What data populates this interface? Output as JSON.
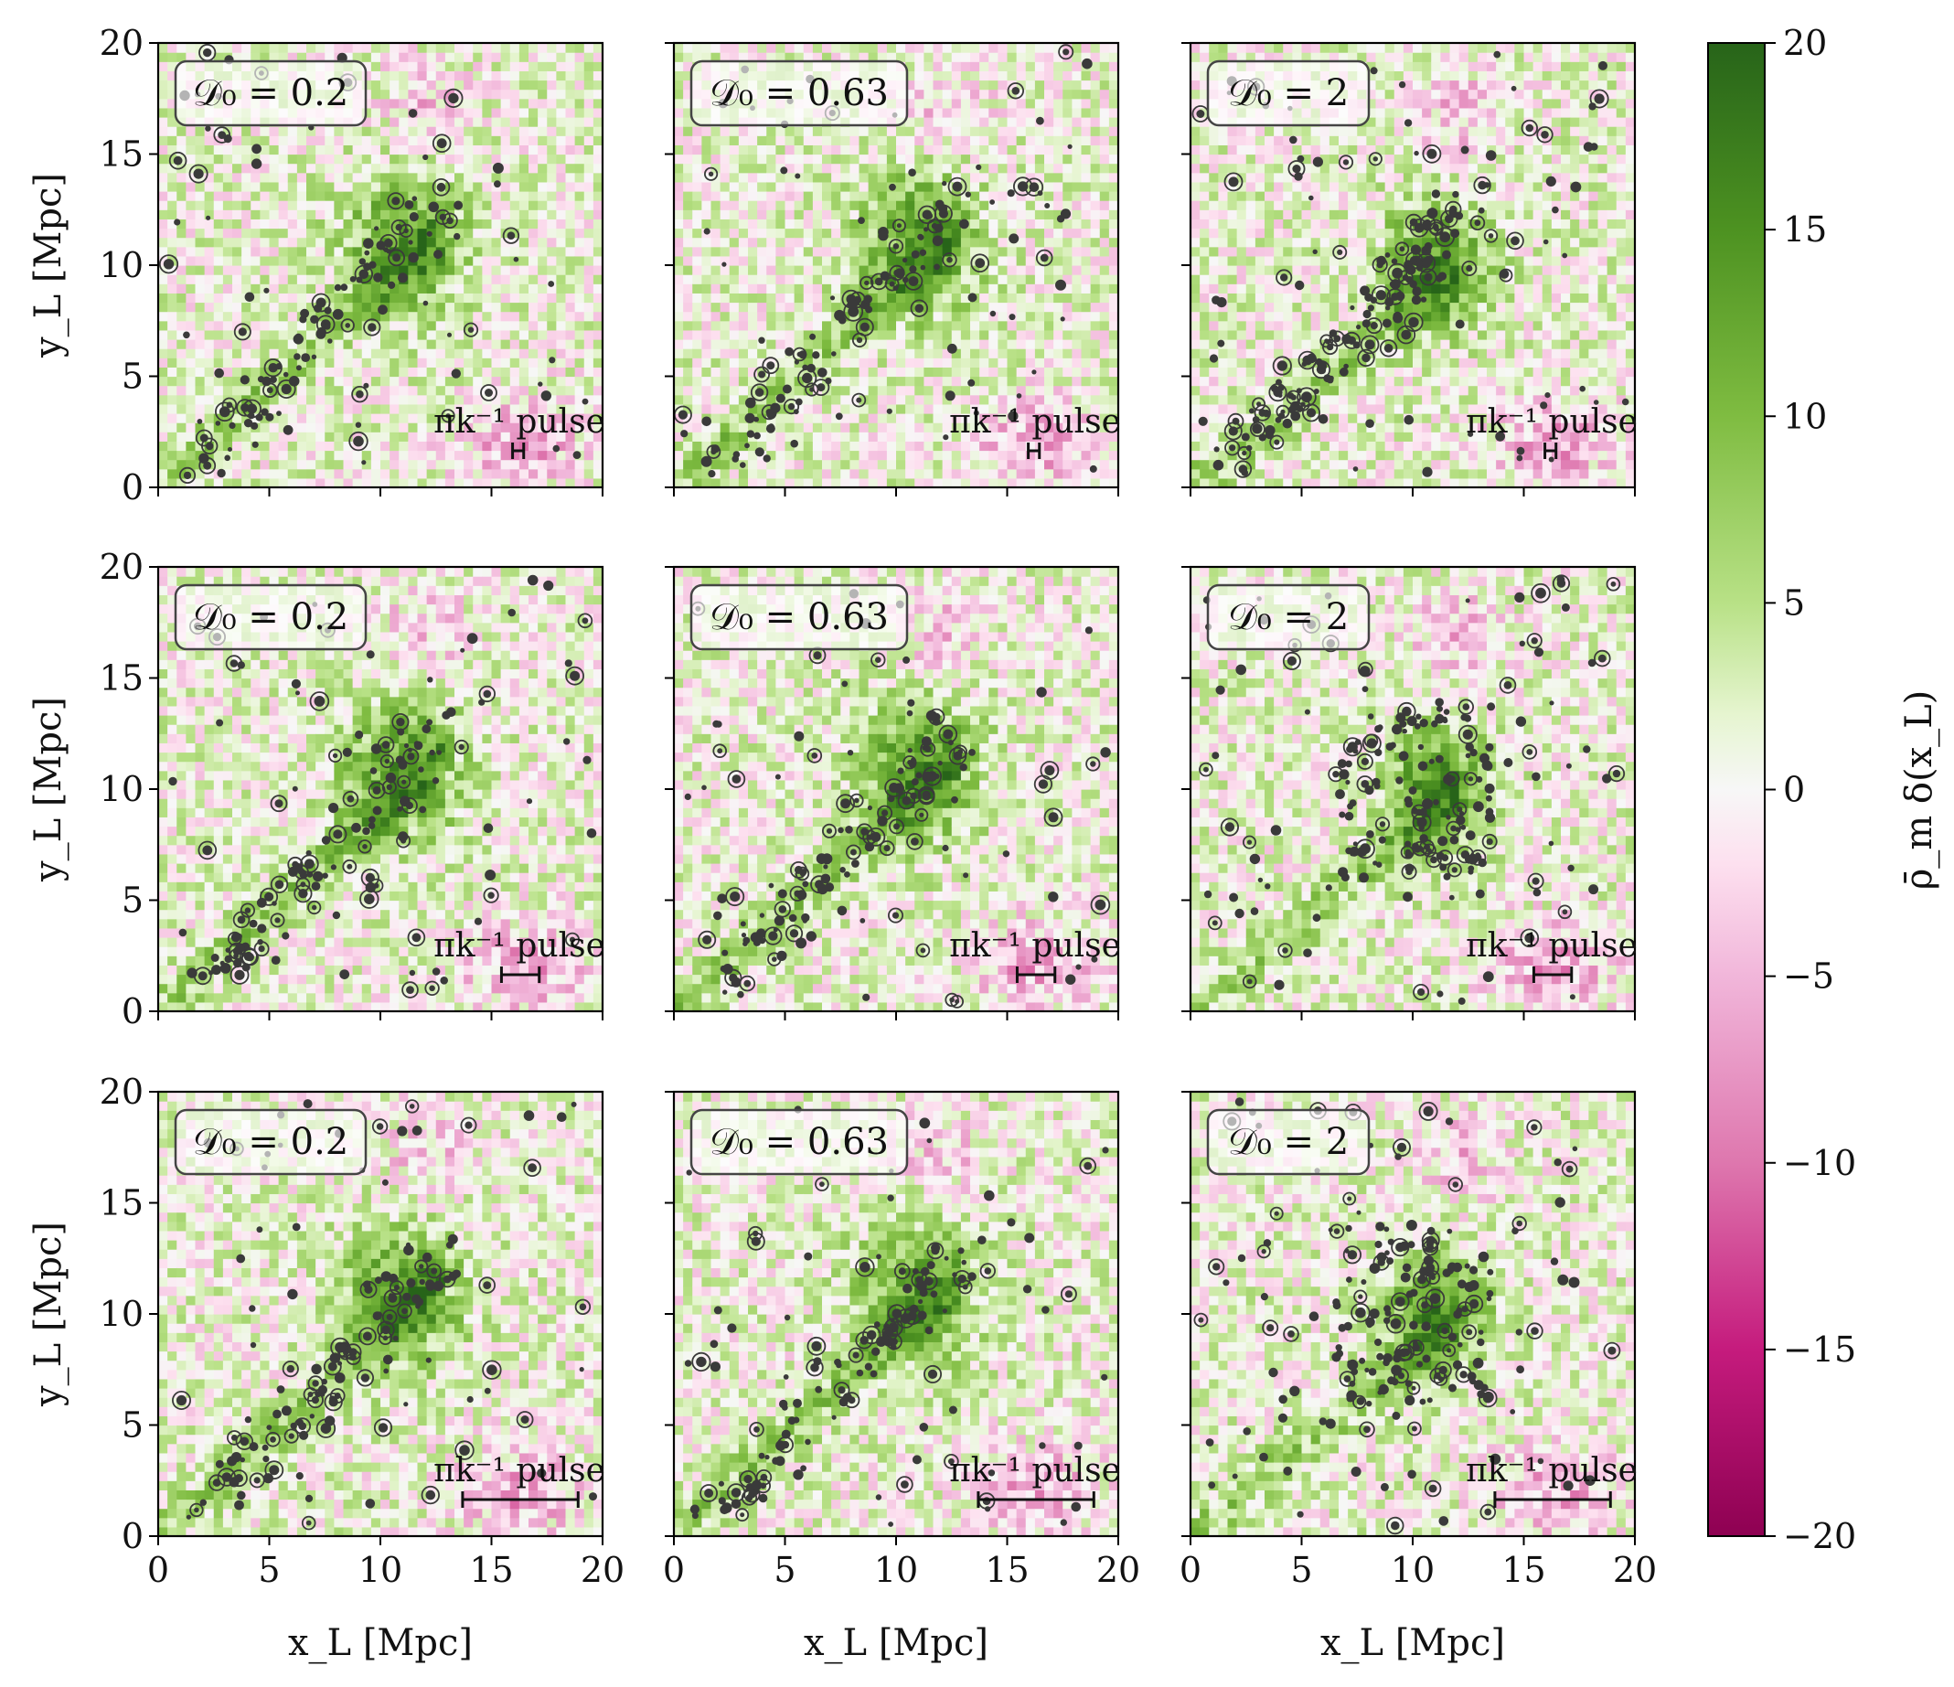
{
  "chart_data": {
    "type": "heatmap",
    "rows": 3,
    "cols": 3,
    "panel_labels": [
      "𝒟₀ = 0.2",
      "𝒟₀ = 0.63",
      "𝒟₀ = 2"
    ],
    "xlabel": "x_L [Mpc]",
    "ylabel": "y_L [Mpc]",
    "x_range": [
      0,
      20
    ],
    "y_range": [
      0,
      20
    ],
    "x_ticks": [
      "0",
      "5",
      "10",
      "15",
      "20"
    ],
    "y_ticks": [
      "0",
      "5",
      "10",
      "15",
      "20"
    ],
    "colorbar": {
      "label": "ρ̄_m δ(x_L)",
      "range": [
        -20,
        20
      ],
      "ticks": [
        "−20",
        "−15",
        "−10",
        "−5",
        "0",
        "5",
        "10",
        "15",
        "20"
      ],
      "colormap": "PiYG"
    },
    "scale_bar_label": "πk⁻¹ pulse",
    "scale_bar_lengths_mpc": [
      0.5,
      1.7,
      5.2
    ],
    "scale_bar_center_mpc": [
      16.2,
      16.3,
      16.3
    ],
    "colors": {
      "green_dark": "#276419",
      "green_mid": "#7fbc41",
      "green_light": "#e6f5d0",
      "white": "#f7f7f7",
      "pink_light": "#fde0ef",
      "pink_mid": "#de77ae",
      "pink_dark": "#8e0152",
      "halo": "#3a3a3a"
    }
  }
}
